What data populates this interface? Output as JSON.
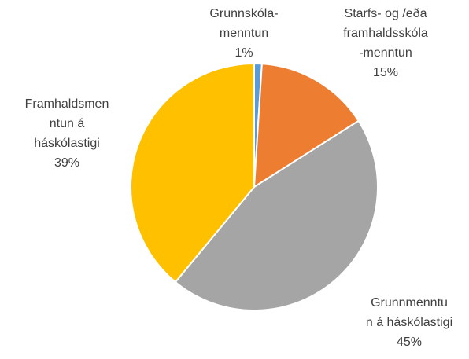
{
  "chart_data": {
    "type": "pie",
    "categories": [
      [
        "Grunnskóla-",
        "menntun"
      ],
      [
        "Starfs- og /eða",
        "framhaldsskóla",
        "-menntun"
      ],
      [
        "Grunnmenntu",
        "n á háskólastigi"
      ],
      [
        "Framhaldsmen",
        "ntun á",
        "háskólastigi"
      ]
    ],
    "values": [
      1,
      15,
      45,
      39
    ],
    "value_labels": [
      "1%",
      "15%",
      "45%",
      "39%"
    ],
    "colors": [
      "#5b9bd5",
      "#ed7d31",
      "#a5a5a5",
      "#ffc000"
    ]
  }
}
